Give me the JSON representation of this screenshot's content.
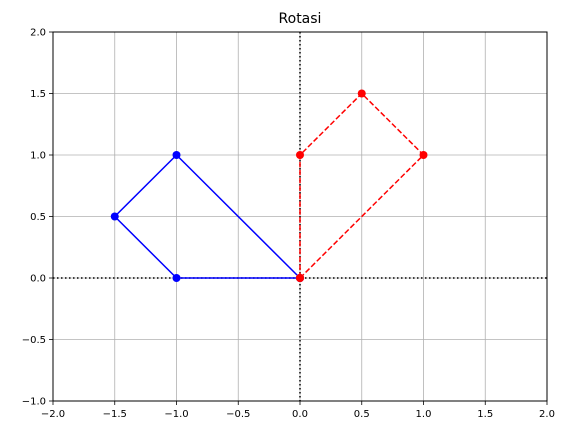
{
  "chart_data": {
    "type": "line",
    "title": "Rotasi",
    "xlabel": "",
    "ylabel": "",
    "xlim": [
      -2.0,
      2.0
    ],
    "ylim": [
      -1.0,
      2.0
    ],
    "grid": true,
    "xticks": [
      -2.0,
      -1.5,
      -1.0,
      -0.5,
      0.0,
      0.5,
      1.0,
      1.5,
      2.0
    ],
    "xtick_labels": [
      "−2.0",
      "−1.5",
      "−1.0",
      "−0.5",
      "0.0",
      "0.5",
      "1.0",
      "1.5",
      "2.0"
    ],
    "yticks": [
      -1.0,
      -0.5,
      0.0,
      0.5,
      1.0,
      1.5,
      2.0
    ],
    "ytick_labels": [
      "−1.0",
      "−0.5",
      "0.0",
      "0.5",
      "1.0",
      "1.5",
      "2.0"
    ],
    "reference_lines": [
      {
        "orientation": "horizontal",
        "value": 0.0,
        "color": "#000000",
        "style": "dotted"
      },
      {
        "orientation": "vertical",
        "value": 0.0,
        "color": "#000000",
        "style": "dotted"
      }
    ],
    "series": [
      {
        "color": "#0000ff",
        "style": "solid",
        "marker": "circle",
        "x": [
          0.0,
          -1.0,
          -1.5,
          -1.0,
          0.0
        ],
        "y": [
          0.0,
          0.0,
          0.5,
          1.0,
          0.0
        ]
      },
      {
        "color": "#ff0000",
        "style": "dashed",
        "marker": "circle",
        "x": [
          0.0,
          0.0,
          0.5,
          1.0,
          0.0
        ],
        "y": [
          0.0,
          1.0,
          1.5,
          1.0,
          0.0
        ]
      }
    ]
  }
}
